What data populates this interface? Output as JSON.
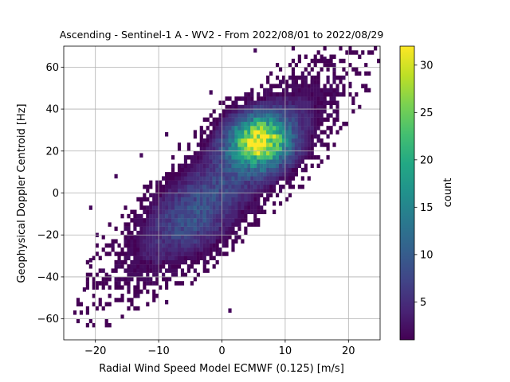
{
  "chart_data": {
    "type": "heatmap",
    "title": "Ascending - Sentinel-1 A - WV2 - From 2022/08/01 to 2022/08/29",
    "xlabel": "Radial Wind Speed Model ECMWF (0.125) [m/s]",
    "ylabel": "Geophysical Doppler Centroid [Hz]",
    "xlim": [
      -25,
      25
    ],
    "ylim": [
      -70,
      70
    ],
    "xticks": [
      -20,
      -10,
      0,
      10,
      20
    ],
    "yticks": [
      -60,
      -40,
      -20,
      0,
      20,
      40,
      60
    ],
    "grid": true,
    "bin_size": {
      "x": 0.5,
      "y": 2
    },
    "colormap": "viridis",
    "colorbar": {
      "label": "count",
      "min": 1,
      "max": 32,
      "ticks": [
        5,
        10,
        15,
        20,
        25,
        30
      ]
    },
    "density_model": {
      "description": "2D histogram of counts; core ridge along y ≈ 3.3·x + 4",
      "peak_count": 32,
      "peak_at": {
        "x": 6,
        "y": 25
      },
      "secondary_peak": {
        "x": -5,
        "y": -14,
        "count": 9
      }
    },
    "scattered_bins": [
      {
        "x": -22,
        "y": -47
      },
      {
        "x": -21,
        "y": -33
      },
      {
        "x": -18,
        "y": -41
      },
      {
        "x": -13,
        "y": -38
      },
      {
        "x": -9,
        "y": -53
      },
      {
        "x": 1,
        "y": -57
      },
      {
        "x": 20,
        "y": 51
      },
      {
        "x": 16,
        "y": 63
      },
      {
        "x": 11,
        "y": 68
      },
      {
        "x": 5,
        "y": 67
      },
      {
        "x": -2,
        "y": 47
      },
      {
        "x": -9,
        "y": 27
      },
      {
        "x": -13,
        "y": 17
      },
      {
        "x": 16,
        "y": 43
      },
      {
        "x": 14,
        "y": 52
      },
      {
        "x": -17,
        "y": 7
      },
      {
        "x": -21,
        "y": -8
      },
      {
        "x": -20,
        "y": -21
      }
    ]
  }
}
